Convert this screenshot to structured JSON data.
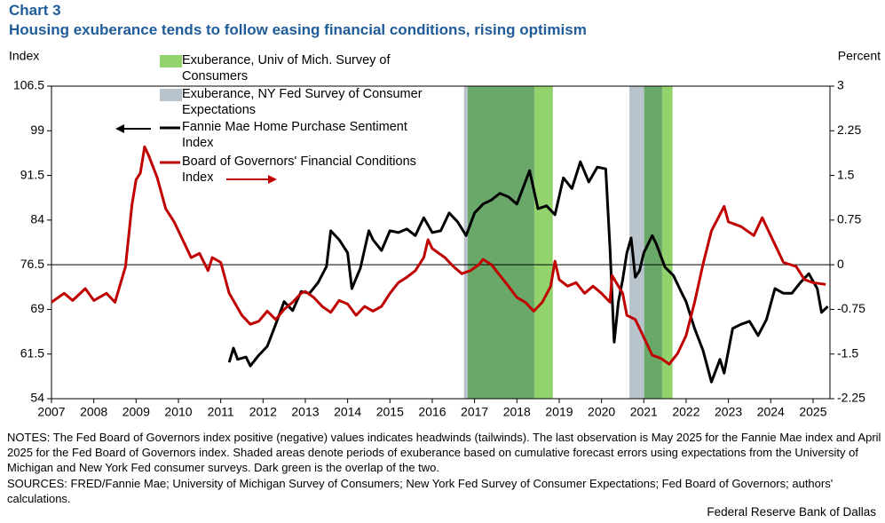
{
  "chart_data": {
    "type": "line",
    "title": "Chart 3",
    "subtitle": "Housing exuberance tends to follow easing financial conditions, rising optimism",
    "y_label": "Index",
    "y2_label": "Percent",
    "xlim": [
      2007,
      2025.4
    ],
    "xticks": [
      2007,
      2008,
      2009,
      2010,
      2011,
      2012,
      2013,
      2014,
      2015,
      2016,
      2017,
      2018,
      2019,
      2020,
      2021,
      2022,
      2023,
      2024,
      2025
    ],
    "ylim": [
      54,
      106.5
    ],
    "yticks": [
      54,
      61.5,
      69,
      76.5,
      84,
      91.5,
      99,
      106.5
    ],
    "y2lim": [
      -2.25,
      3
    ],
    "y2ticks": [
      -2.25,
      -1.5,
      -0.75,
      0,
      0.75,
      1.5,
      2.25,
      3
    ],
    "reference_line": 76.5,
    "shaded": [
      {
        "name": "Exuberance, Univ of Mich. Survey of Consumers",
        "color": "#92d36e",
        "spans": [
          [
            2016.84,
            2018.85
          ],
          [
            2021.01,
            2021.68
          ]
        ]
      },
      {
        "name": "Exuberance, NY Fed Survey of Consumer Expectations",
        "color": "#b8c3cc",
        "spans": [
          [
            2016.75,
            2018.41
          ],
          [
            2020.66,
            2021.43
          ]
        ]
      }
    ],
    "overlap_color": "#6aa86a",
    "series": [
      {
        "name": "Fannie Mae Home Purchase Sentiment Index",
        "color": "#000000",
        "axis": "y",
        "x": [
          2011.2,
          2011.3,
          2011.4,
          2011.6,
          2011.7,
          2011.9,
          2012.1,
          2012.3,
          2012.5,
          2012.7,
          2012.9,
          2013.1,
          2013.3,
          2013.5,
          2013.6,
          2013.8,
          2014.0,
          2014.1,
          2014.3,
          2014.5,
          2014.6,
          2014.8,
          2015.0,
          2015.2,
          2015.4,
          2015.6,
          2015.8,
          2016.0,
          2016.2,
          2016.4,
          2016.6,
          2016.8,
          2017.0,
          2017.2,
          2017.4,
          2017.6,
          2017.8,
          2018.0,
          2018.3,
          2018.5,
          2018.7,
          2018.9,
          2019.1,
          2019.3,
          2019.5,
          2019.7,
          2019.9,
          2020.1,
          2020.2,
          2020.3,
          2020.4,
          2020.5,
          2020.6,
          2020.7,
          2020.8,
          2020.9,
          2021.0,
          2021.2,
          2021.3,
          2021.5,
          2021.7,
          2021.9,
          2022.0,
          2022.2,
          2022.4,
          2022.6,
          2022.8,
          2022.9,
          2023.1,
          2023.3,
          2023.5,
          2023.7,
          2023.9,
          2024.1,
          2024.3,
          2024.5,
          2024.7,
          2024.9,
          2025.1,
          2025.2,
          2025.35
        ],
        "values": [
          60.1,
          62.5,
          60.6,
          61.0,
          59.5,
          61.3,
          62.8,
          66.5,
          70.3,
          68.8,
          72.0,
          71.7,
          73.5,
          76.2,
          82.2,
          80.7,
          78.5,
          72.5,
          75.9,
          82.2,
          80.7,
          78.9,
          82.2,
          81.9,
          82.5,
          81.4,
          84.4,
          81.9,
          82.2,
          85.2,
          83.7,
          81.4,
          85.2,
          86.7,
          87.4,
          88.5,
          87.9,
          86.7,
          92.3,
          85.9,
          86.4,
          84.9,
          91.1,
          89.3,
          93.8,
          90.4,
          92.9,
          92.6,
          79.2,
          63.5,
          70.3,
          74.0,
          78.5,
          81.0,
          74.4,
          75.5,
          78.5,
          81.4,
          79.9,
          76.1,
          74.7,
          71.7,
          70.3,
          65.8,
          62.1,
          56.8,
          60.6,
          58.3,
          65.8,
          66.5,
          67.0,
          64.6,
          67.3,
          72.5,
          71.7,
          71.7,
          73.5,
          75.0,
          72.5,
          68.5,
          69.5
        ]
      },
      {
        "name": "Board of Governors' Financial Conditions Index",
        "color": "#c00000",
        "axis": "y2",
        "x": [
          2007.0,
          2007.3,
          2007.5,
          2007.8,
          2008.0,
          2008.3,
          2008.5,
          2008.75,
          2008.9,
          2009.0,
          2009.1,
          2009.2,
          2009.3,
          2009.5,
          2009.7,
          2009.9,
          2010.1,
          2010.3,
          2010.5,
          2010.7,
          2010.8,
          2011.0,
          2011.2,
          2011.5,
          2011.7,
          2011.9,
          2012.1,
          2012.3,
          2012.5,
          2012.7,
          2012.9,
          2013.0,
          2013.2,
          2013.4,
          2013.6,
          2013.8,
          2014.0,
          2014.2,
          2014.4,
          2014.6,
          2014.8,
          2015.0,
          2015.2,
          2015.4,
          2015.6,
          2015.8,
          2015.9,
          2016.0,
          2016.3,
          2016.5,
          2016.7,
          2016.9,
          2017.1,
          2017.2,
          2017.4,
          2017.6,
          2017.8,
          2018.0,
          2018.2,
          2018.4,
          2018.6,
          2018.8,
          2018.9,
          2019.0,
          2019.2,
          2019.4,
          2019.6,
          2019.8,
          2020.0,
          2020.2,
          2020.25,
          2020.35,
          2020.5,
          2020.6,
          2020.8,
          2021.0,
          2021.2,
          2021.4,
          2021.6,
          2021.8,
          2022.0,
          2022.2,
          2022.4,
          2022.6,
          2022.9,
          2023.0,
          2023.3,
          2023.6,
          2023.8,
          2024.1,
          2024.3,
          2024.6,
          2024.8,
          2025.0,
          2025.3
        ],
        "values": [
          -0.63,
          -0.48,
          -0.6,
          -0.4,
          -0.6,
          -0.48,
          -0.63,
          -0.03,
          1.0,
          1.43,
          1.54,
          1.98,
          1.83,
          1.46,
          0.94,
          0.72,
          0.42,
          0.12,
          0.19,
          -0.1,
          0.12,
          0.04,
          -0.48,
          -0.85,
          -1.0,
          -0.95,
          -0.78,
          -0.92,
          -0.75,
          -0.63,
          -0.48,
          -0.45,
          -0.55,
          -0.7,
          -0.8,
          -0.6,
          -0.66,
          -0.85,
          -0.7,
          -0.78,
          -0.7,
          -0.48,
          -0.3,
          -0.21,
          -0.1,
          0.12,
          0.42,
          0.27,
          0.12,
          -0.03,
          -0.15,
          -0.1,
          0,
          0.09,
          0,
          -0.18,
          -0.36,
          -0.55,
          -0.63,
          -0.78,
          -0.63,
          -0.36,
          0.06,
          -0.25,
          -0.36,
          -0.3,
          -0.48,
          -0.36,
          -0.48,
          -0.63,
          -0.18,
          -0.3,
          -0.48,
          -0.85,
          -0.92,
          -1.22,
          -1.52,
          -1.57,
          -1.67,
          -1.49,
          -1.19,
          -0.63,
          0.01,
          0.57,
          0.98,
          0.72,
          0.64,
          0.49,
          0.79,
          0.34,
          0.04,
          -0.03,
          -0.25,
          -0.3,
          -0.33
        ]
      }
    ],
    "notes": "NOTES: The Fed Board of Governors index positive (negative) values indicates headwinds (tailwinds). The last observation is May 2025 for the Fannie Mae index and April 2025 for the Fed Board of Governors index. Shaded areas denote periods of exuberance based on cumulative forecast errors using expectations from the University of  Michigan and New York Fed consumer surveys. Dark green is the overlap of the two.",
    "sources": "SOURCES: FRED/Fannie Mae; University of Michigan Survey of Consumers; New York Fed Survey of Consumer Expectations; Fed Board of Governors; authors' calculations.",
    "footer": "Federal Reserve Bank of Dallas"
  }
}
